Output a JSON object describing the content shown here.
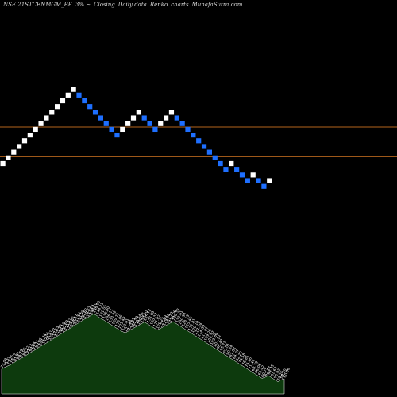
{
  "header": {
    "symbol": "NSE 21STCENMGM_BE",
    "change": "3% ~",
    "closing": "Closing",
    "timeframe": "Daily data",
    "chart_kind": "Renko",
    "charts_word": "charts",
    "site": "MunafaSutra.com"
  },
  "colors": {
    "background": "#000000",
    "up_brick": "#ffffff",
    "down_brick": "#1e6fff",
    "level_line": "#b5651d",
    "volume_fill": "#0d3a0d",
    "volume_outline": "#ffffff"
  },
  "chart_data": {
    "type": "renko",
    "levels": [
      90.6,
      85.4
    ],
    "bricks": [
      {
        "dir": "up",
        "close": 84.2
      },
      {
        "dir": "up",
        "close": 85.2
      },
      {
        "dir": "up",
        "close": 86.2
      },
      {
        "dir": "up",
        "close": 87.2
      },
      {
        "dir": "up",
        "close": 88.2
      },
      {
        "dir": "up",
        "close": 89.2
      },
      {
        "dir": "up",
        "close": 90.2
      },
      {
        "dir": "up",
        "close": 91.2
      },
      {
        "dir": "up",
        "close": 92.2
      },
      {
        "dir": "up",
        "close": 93.2
      },
      {
        "dir": "up",
        "close": 94.2
      },
      {
        "dir": "up",
        "close": 95.2
      },
      {
        "dir": "up",
        "close": 96.2
      },
      {
        "dir": "up",
        "close": 97.2
      },
      {
        "dir": "down",
        "close": 96.2
      },
      {
        "dir": "down",
        "close": 95.2
      },
      {
        "dir": "down",
        "close": 94.2
      },
      {
        "dir": "down",
        "close": 93.2
      },
      {
        "dir": "down",
        "close": 92.2
      },
      {
        "dir": "down",
        "close": 91.2
      },
      {
        "dir": "down",
        "close": 90.2
      },
      {
        "dir": "down",
        "close": 89.2
      },
      {
        "dir": "up",
        "close": 90.2
      },
      {
        "dir": "up",
        "close": 91.2
      },
      {
        "dir": "up",
        "close": 92.2
      },
      {
        "dir": "up",
        "close": 93.2
      },
      {
        "dir": "down",
        "close": 92.2
      },
      {
        "dir": "down",
        "close": 91.2
      },
      {
        "dir": "down",
        "close": 90.2
      },
      {
        "dir": "up",
        "close": 91.2
      },
      {
        "dir": "up",
        "close": 92.2
      },
      {
        "dir": "up",
        "close": 93.2
      },
      {
        "dir": "down",
        "close": 92.2
      },
      {
        "dir": "down",
        "close": 91.2
      },
      {
        "dir": "down",
        "close": 90.2
      },
      {
        "dir": "down",
        "close": 89.2
      },
      {
        "dir": "down",
        "close": 88.2
      },
      {
        "dir": "down",
        "close": 87.2
      },
      {
        "dir": "down",
        "close": 86.2
      },
      {
        "dir": "down",
        "close": 85.2
      },
      {
        "dir": "down",
        "close": 84.2
      },
      {
        "dir": "down",
        "close": 83.2
      },
      {
        "dir": "up",
        "close": 84.2
      },
      {
        "dir": "down",
        "close": 83.2
      },
      {
        "dir": "down",
        "close": 82.2
      },
      {
        "dir": "down",
        "close": 81.2
      },
      {
        "dir": "up",
        "close": 82.2
      },
      {
        "dir": "down",
        "close": 81.2
      },
      {
        "dir": "down",
        "close": 80.2
      },
      {
        "dir": "up",
        "close": 81.2
      }
    ],
    "volume_labels": [
      "73.03",
      "75.31",
      "77.26",
      "79.17",
      "81.91",
      "84.79",
      "87.06",
      "89.22",
      "92.12",
      "94.84",
      "97.21",
      "99.85",
      "102.74",
      "105.06",
      "107.41",
      "110.27",
      "112.83",
      "115.30",
      "118.10",
      "120.68",
      "123.41",
      "125.86",
      "128.57",
      "131.64",
      "133.90",
      "136.62",
      "139.33",
      "141.29",
      "144.10",
      "146.53",
      "144.21",
      "141.05",
      "138.80",
      "136.11",
      "133.42",
      "130.71",
      "128.05",
      "125.48",
      "123.01",
      "121.44",
      "123.85",
      "126.33",
      "128.64",
      "130.97",
      "133.40",
      "135.72",
      "133.08",
      "130.37",
      "127.82",
      "125.25",
      "127.19",
      "129.48",
      "131.77",
      "134.06",
      "136.33",
      "133.61",
      "130.94",
      "128.19",
      "125.46",
      "122.81",
      "120.10",
      "117.38",
      "114.69",
      "111.97",
      "109.26",
      "106.57",
      "103.86",
      "101.12",
      "98.47",
      "95.73",
      "93.01",
      "90.34",
      "87.63",
      "84.97",
      "82.20",
      "79.58",
      "76.85",
      "74.16",
      "71.44",
      "68.79",
      "66.06",
      "63.42",
      "60.75",
      "62.18",
      "64.35",
      "61.62",
      "58.93",
      "56.26",
      "58.70",
      "60.06"
    ]
  }
}
